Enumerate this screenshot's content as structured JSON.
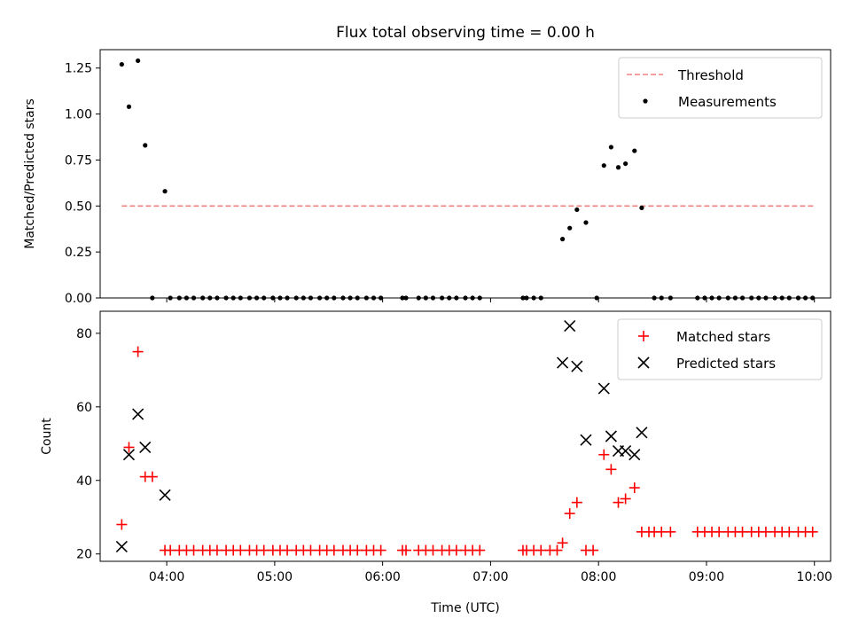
{
  "chart_data": [
    {
      "type": "scatter",
      "title": "Flux total observing time = 0.00 h",
      "xlabel": "",
      "ylabel": "Matched/Predicted stars",
      "xlim": [
        "03:23",
        "10:09"
      ],
      "ylim": [
        0,
        1.35
      ],
      "x_ticks": [
        "04:00",
        "05:00",
        "06:00",
        "07:00",
        "08:00",
        "09:00",
        "10:00"
      ],
      "y_ticks": [
        "0.00",
        "0.25",
        "0.50",
        "0.75",
        "1.00",
        "1.25"
      ],
      "legend": {
        "position": "top-right",
        "entries": [
          "Threshold",
          "Measurements"
        ]
      },
      "series": [
        {
          "name": "Threshold",
          "style": "dashed-line",
          "color": "#f08080",
          "points": [
            [
              "03:35",
              0.5
            ],
            [
              "10:00",
              0.5
            ]
          ]
        },
        {
          "name": "Measurements",
          "style": "dot",
          "color": "#000000",
          "points": [
            [
              "03:35",
              1.27
            ],
            [
              "03:39",
              1.04
            ],
            [
              "03:44",
              1.29
            ],
            [
              "03:48",
              0.83
            ],
            [
              "03:59",
              0.58
            ],
            [
              "03:52",
              0
            ],
            [
              "04:02",
              0
            ],
            [
              "04:07",
              0
            ],
            [
              "04:11",
              0
            ],
            [
              "04:15",
              0
            ],
            [
              "04:20",
              0
            ],
            [
              "04:24",
              0
            ],
            [
              "04:28",
              0
            ],
            [
              "04:33",
              0
            ],
            [
              "04:37",
              0
            ],
            [
              "04:41",
              0
            ],
            [
              "04:46",
              0
            ],
            [
              "04:50",
              0
            ],
            [
              "04:54",
              0
            ],
            [
              "04:59",
              0
            ],
            [
              "05:03",
              0
            ],
            [
              "05:07",
              0
            ],
            [
              "05:12",
              0
            ],
            [
              "05:16",
              0
            ],
            [
              "05:20",
              0
            ],
            [
              "05:25",
              0
            ],
            [
              "05:29",
              0
            ],
            [
              "05:33",
              0
            ],
            [
              "05:38",
              0
            ],
            [
              "05:42",
              0
            ],
            [
              "05:46",
              0
            ],
            [
              "05:51",
              0
            ],
            [
              "05:55",
              0
            ],
            [
              "05:59",
              0
            ],
            [
              "06:11",
              0
            ],
            [
              "06:13",
              0
            ],
            [
              "06:20",
              0
            ],
            [
              "06:24",
              0
            ],
            [
              "06:28",
              0
            ],
            [
              "06:33",
              0
            ],
            [
              "06:37",
              0
            ],
            [
              "06:41",
              0
            ],
            [
              "06:46",
              0
            ],
            [
              "06:50",
              0
            ],
            [
              "06:54",
              0
            ],
            [
              "07:18",
              0
            ],
            [
              "07:20",
              0
            ],
            [
              "07:24",
              0
            ],
            [
              "07:28",
              0
            ],
            [
              "07:40",
              0.32
            ],
            [
              "07:44",
              0.38
            ],
            [
              "07:48",
              0.48
            ],
            [
              "07:53",
              0.41
            ],
            [
              "07:59",
              0
            ],
            [
              "08:03",
              0.72
            ],
            [
              "08:07",
              0.82
            ],
            [
              "08:11",
              0.71
            ],
            [
              "08:15",
              0.73
            ],
            [
              "08:20",
              0.8
            ],
            [
              "08:24",
              0.49
            ],
            [
              "08:31",
              0
            ],
            [
              "08:35",
              0
            ],
            [
              "08:40",
              0
            ],
            [
              "08:55",
              0
            ],
            [
              "08:59",
              0
            ],
            [
              "09:03",
              0
            ],
            [
              "09:07",
              0
            ],
            [
              "09:12",
              0
            ],
            [
              "09:16",
              0
            ],
            [
              "09:20",
              0
            ],
            [
              "09:25",
              0
            ],
            [
              "09:29",
              0
            ],
            [
              "09:33",
              0
            ],
            [
              "09:38",
              0
            ],
            [
              "09:42",
              0
            ],
            [
              "09:46",
              0
            ],
            [
              "09:51",
              0
            ],
            [
              "09:55",
              0
            ],
            [
              "09:59",
              0
            ]
          ]
        }
      ]
    },
    {
      "type": "scatter",
      "title": "",
      "xlabel": "Time (UTC)",
      "ylabel": "Count",
      "xlim": [
        "03:23",
        "10:09"
      ],
      "ylim": [
        18,
        86
      ],
      "x_ticks": [
        "04:00",
        "05:00",
        "06:00",
        "07:00",
        "08:00",
        "09:00",
        "10:00"
      ],
      "y_ticks": [
        "20",
        "40",
        "60",
        "80"
      ],
      "legend": {
        "position": "top-right",
        "entries": [
          "Matched stars",
          "Predicted stars"
        ]
      },
      "series": [
        {
          "name": "Matched stars",
          "style": "plus",
          "color": "#ff0000",
          "points": [
            [
              "03:35",
              28
            ],
            [
              "03:39",
              49
            ],
            [
              "03:44",
              75
            ],
            [
              "03:48",
              41
            ],
            [
              "03:52",
              41
            ],
            [
              "03:59",
              21
            ],
            [
              "04:02",
              21
            ],
            [
              "04:07",
              21
            ],
            [
              "04:11",
              21
            ],
            [
              "04:15",
              21
            ],
            [
              "04:20",
              21
            ],
            [
              "04:24",
              21
            ],
            [
              "04:28",
              21
            ],
            [
              "04:33",
              21
            ],
            [
              "04:37",
              21
            ],
            [
              "04:41",
              21
            ],
            [
              "04:46",
              21
            ],
            [
              "04:50",
              21
            ],
            [
              "04:54",
              21
            ],
            [
              "04:59",
              21
            ],
            [
              "05:03",
              21
            ],
            [
              "05:07",
              21
            ],
            [
              "05:12",
              21
            ],
            [
              "05:16",
              21
            ],
            [
              "05:20",
              21
            ],
            [
              "05:25",
              21
            ],
            [
              "05:29",
              21
            ],
            [
              "05:33",
              21
            ],
            [
              "05:38",
              21
            ],
            [
              "05:42",
              21
            ],
            [
              "05:46",
              21
            ],
            [
              "05:51",
              21
            ],
            [
              "05:55",
              21
            ],
            [
              "05:59",
              21
            ],
            [
              "06:11",
              21
            ],
            [
              "06:13",
              21
            ],
            [
              "06:20",
              21
            ],
            [
              "06:24",
              21
            ],
            [
              "06:28",
              21
            ],
            [
              "06:33",
              21
            ],
            [
              "06:37",
              21
            ],
            [
              "06:41",
              21
            ],
            [
              "06:46",
              21
            ],
            [
              "06:50",
              21
            ],
            [
              "06:54",
              21
            ],
            [
              "07:18",
              21
            ],
            [
              "07:20",
              21
            ],
            [
              "07:24",
              21
            ],
            [
              "07:28",
              21
            ],
            [
              "07:33",
              21
            ],
            [
              "07:37",
              21
            ],
            [
              "07:40",
              23
            ],
            [
              "07:44",
              31
            ],
            [
              "07:48",
              34
            ],
            [
              "07:53",
              21
            ],
            [
              "07:57",
              21
            ],
            [
              "08:03",
              47
            ],
            [
              "08:07",
              43
            ],
            [
              "08:11",
              34
            ],
            [
              "08:15",
              35
            ],
            [
              "08:20",
              38
            ],
            [
              "08:24",
              26
            ],
            [
              "08:28",
              26
            ],
            [
              "08:31",
              26
            ],
            [
              "08:35",
              26
            ],
            [
              "08:40",
              26
            ],
            [
              "08:55",
              26
            ],
            [
              "08:59",
              26
            ],
            [
              "09:03",
              26
            ],
            [
              "09:07",
              26
            ],
            [
              "09:12",
              26
            ],
            [
              "09:16",
              26
            ],
            [
              "09:20",
              26
            ],
            [
              "09:25",
              26
            ],
            [
              "09:29",
              26
            ],
            [
              "09:33",
              26
            ],
            [
              "09:38",
              26
            ],
            [
              "09:42",
              26
            ],
            [
              "09:46",
              26
            ],
            [
              "09:51",
              26
            ],
            [
              "09:55",
              26
            ],
            [
              "09:59",
              26
            ]
          ]
        },
        {
          "name": "Predicted stars",
          "style": "x",
          "color": "#000000",
          "points": [
            [
              "03:35",
              22
            ],
            [
              "03:39",
              47
            ],
            [
              "03:44",
              58
            ],
            [
              "03:48",
              49
            ],
            [
              "03:59",
              36
            ],
            [
              "07:40",
              72
            ],
            [
              "07:44",
              82
            ],
            [
              "07:48",
              71
            ],
            [
              "07:53",
              51
            ],
            [
              "08:03",
              65
            ],
            [
              "08:07",
              52
            ],
            [
              "08:11",
              48
            ],
            [
              "08:15",
              48
            ],
            [
              "08:20",
              47
            ],
            [
              "08:24",
              53
            ]
          ]
        }
      ]
    }
  ]
}
